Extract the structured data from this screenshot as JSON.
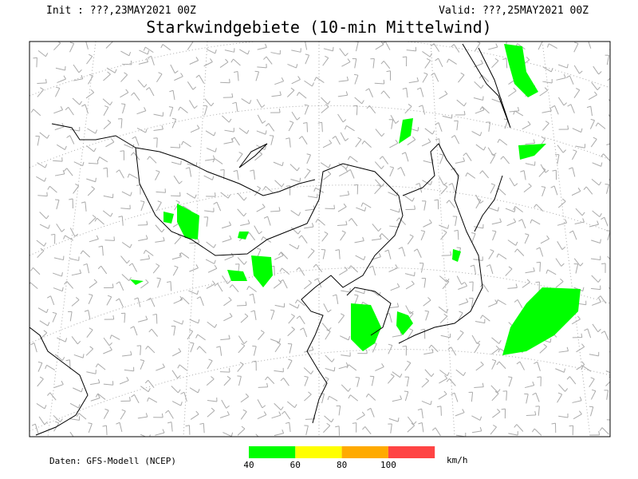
{
  "header": {
    "init": "Init : ???,23MAY2021 00Z",
    "valid": "Valid: ???,25MAY2021 00Z",
    "title": "Starkwindgebiete (10-min Mittelwind)"
  },
  "footer": {
    "source": "Daten: GFS-Modell (NCEP)"
  },
  "legend": {
    "colors": [
      "#00ff00",
      "#ffff00",
      "#ffaa00",
      "#ff4444"
    ],
    "ticks": [
      40,
      60,
      80,
      100
    ],
    "unit": "km/h"
  }
}
